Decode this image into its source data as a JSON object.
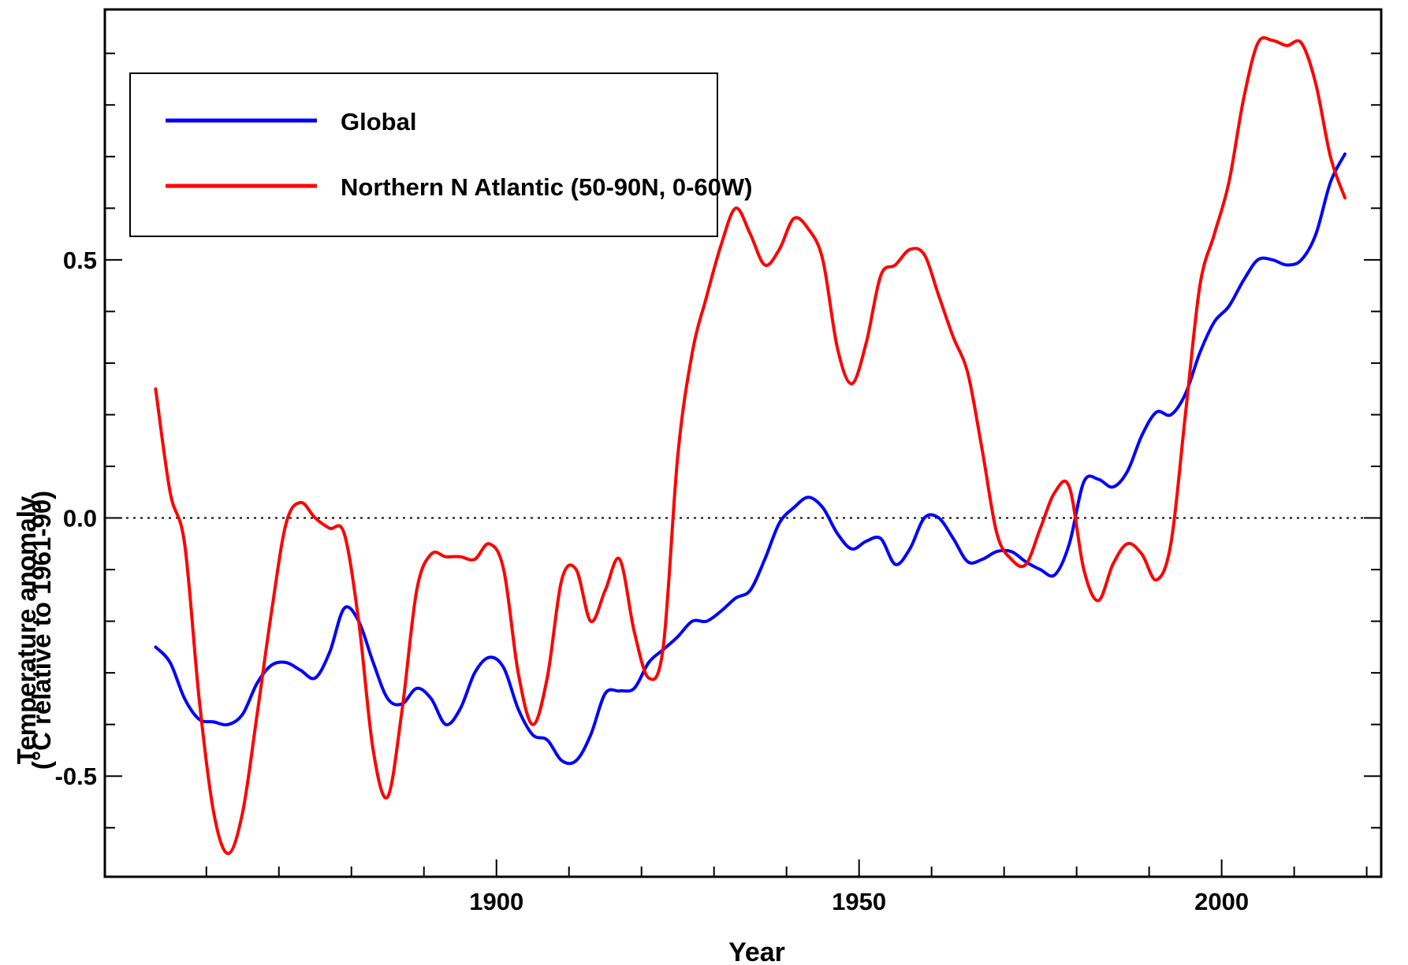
{
  "chart_data": {
    "type": "line",
    "title": "",
    "xlabel": "Year",
    "ylabel": "Temperature anomaly",
    "ylabel_line2": "(°C relative to 1961-90)",
    "xlim": [
      1846,
      2022
    ],
    "ylim": [
      -0.695,
      0.985
    ],
    "x_ticks": [
      1900,
      1950,
      2000
    ],
    "x_tick_labels": [
      "1900",
      "1950",
      "2000"
    ],
    "y_ticks": [
      -0.5,
      0.0,
      0.5
    ],
    "y_tick_labels": [
      "-0.5",
      "0.0",
      "0.5"
    ],
    "zero_line": true,
    "grid": false,
    "legend_position": "top-left",
    "series": [
      {
        "name": "Global",
        "color": "#0000ff",
        "x": [
          1853,
          1855,
          1857,
          1859,
          1861,
          1863,
          1865,
          1867,
          1869,
          1871,
          1873,
          1875,
          1877,
          1879,
          1881,
          1883,
          1885,
          1887,
          1889,
          1891,
          1893,
          1895,
          1897,
          1899,
          1901,
          1903,
          1905,
          1907,
          1909,
          1911,
          1913,
          1915,
          1917,
          1919,
          1921,
          1923,
          1925,
          1927,
          1929,
          1931,
          1933,
          1935,
          1937,
          1939,
          1941,
          1943,
          1945,
          1947,
          1949,
          1951,
          1953,
          1955,
          1957,
          1959,
          1961,
          1963,
          1965,
          1967,
          1969,
          1971,
          1973,
          1975,
          1977,
          1979,
          1981,
          1983,
          1985,
          1987,
          1989,
          1991,
          1993,
          1995,
          1997,
          1999,
          2001,
          2003,
          2005,
          2007,
          2009,
          2011,
          2013,
          2015,
          2017
        ],
        "y": [
          -0.25,
          -0.28,
          -0.35,
          -0.39,
          -0.395,
          -0.4,
          -0.38,
          -0.32,
          -0.285,
          -0.28,
          -0.295,
          -0.31,
          -0.26,
          -0.175,
          -0.2,
          -0.28,
          -0.35,
          -0.36,
          -0.33,
          -0.35,
          -0.4,
          -0.37,
          -0.3,
          -0.27,
          -0.29,
          -0.37,
          -0.42,
          -0.43,
          -0.47,
          -0.47,
          -0.42,
          -0.34,
          -0.335,
          -0.33,
          -0.28,
          -0.255,
          -0.23,
          -0.2,
          -0.2,
          -0.18,
          -0.155,
          -0.14,
          -0.08,
          -0.01,
          0.02,
          0.04,
          0.02,
          -0.03,
          -0.06,
          -0.045,
          -0.04,
          -0.09,
          -0.06,
          0.0,
          0.0,
          -0.04,
          -0.085,
          -0.08,
          -0.065,
          -0.065,
          -0.085,
          -0.1,
          -0.11,
          -0.05,
          0.07,
          0.075,
          0.06,
          0.09,
          0.16,
          0.205,
          0.2,
          0.24,
          0.32,
          0.38,
          0.41,
          0.46,
          0.5,
          0.5,
          0.49,
          0.5,
          0.55,
          0.65,
          0.705
        ]
      },
      {
        "name": "Northern N Atlantic (50-90N, 0-60W)",
        "color": "#ff0000",
        "x": [
          1853,
          1855,
          1857,
          1859,
          1861,
          1863,
          1865,
          1867,
          1869,
          1871,
          1873,
          1875,
          1877,
          1879,
          1881,
          1883,
          1885,
          1887,
          1889,
          1891,
          1893,
          1895,
          1897,
          1899,
          1901,
          1903,
          1905,
          1907,
          1909,
          1911,
          1913,
          1915,
          1917,
          1919,
          1921,
          1923,
          1925,
          1927,
          1929,
          1931,
          1933,
          1935,
          1937,
          1939,
          1941,
          1943,
          1945,
          1947,
          1949,
          1951,
          1953,
          1955,
          1957,
          1959,
          1961,
          1963,
          1965,
          1967,
          1969,
          1971,
          1973,
          1975,
          1977,
          1979,
          1981,
          1983,
          1985,
          1987,
          1989,
          1991,
          1993,
          1995,
          1997,
          1999,
          2001,
          2003,
          2005,
          2007,
          2009,
          2011,
          2013,
          2015,
          2017
        ],
        "y": [
          0.25,
          0.05,
          -0.05,
          -0.35,
          -0.57,
          -0.65,
          -0.57,
          -0.38,
          -0.18,
          -0.01,
          0.03,
          0.0,
          -0.02,
          -0.03,
          -0.2,
          -0.45,
          -0.54,
          -0.37,
          -0.14,
          -0.07,
          -0.075,
          -0.075,
          -0.08,
          -0.05,
          -0.1,
          -0.3,
          -0.4,
          -0.31,
          -0.12,
          -0.1,
          -0.2,
          -0.14,
          -0.08,
          -0.22,
          -0.31,
          -0.25,
          0.12,
          0.32,
          0.43,
          0.53,
          0.6,
          0.55,
          0.49,
          0.52,
          0.58,
          0.56,
          0.5,
          0.33,
          0.26,
          0.34,
          0.47,
          0.49,
          0.52,
          0.51,
          0.43,
          0.35,
          0.28,
          0.13,
          -0.03,
          -0.08,
          -0.09,
          -0.02,
          0.05,
          0.06,
          -0.1,
          -0.16,
          -0.09,
          -0.05,
          -0.07,
          -0.12,
          -0.05,
          0.2,
          0.45,
          0.55,
          0.65,
          0.81,
          0.92,
          0.925,
          0.915,
          0.92,
          0.84,
          0.7,
          0.62
        ]
      }
    ]
  }
}
